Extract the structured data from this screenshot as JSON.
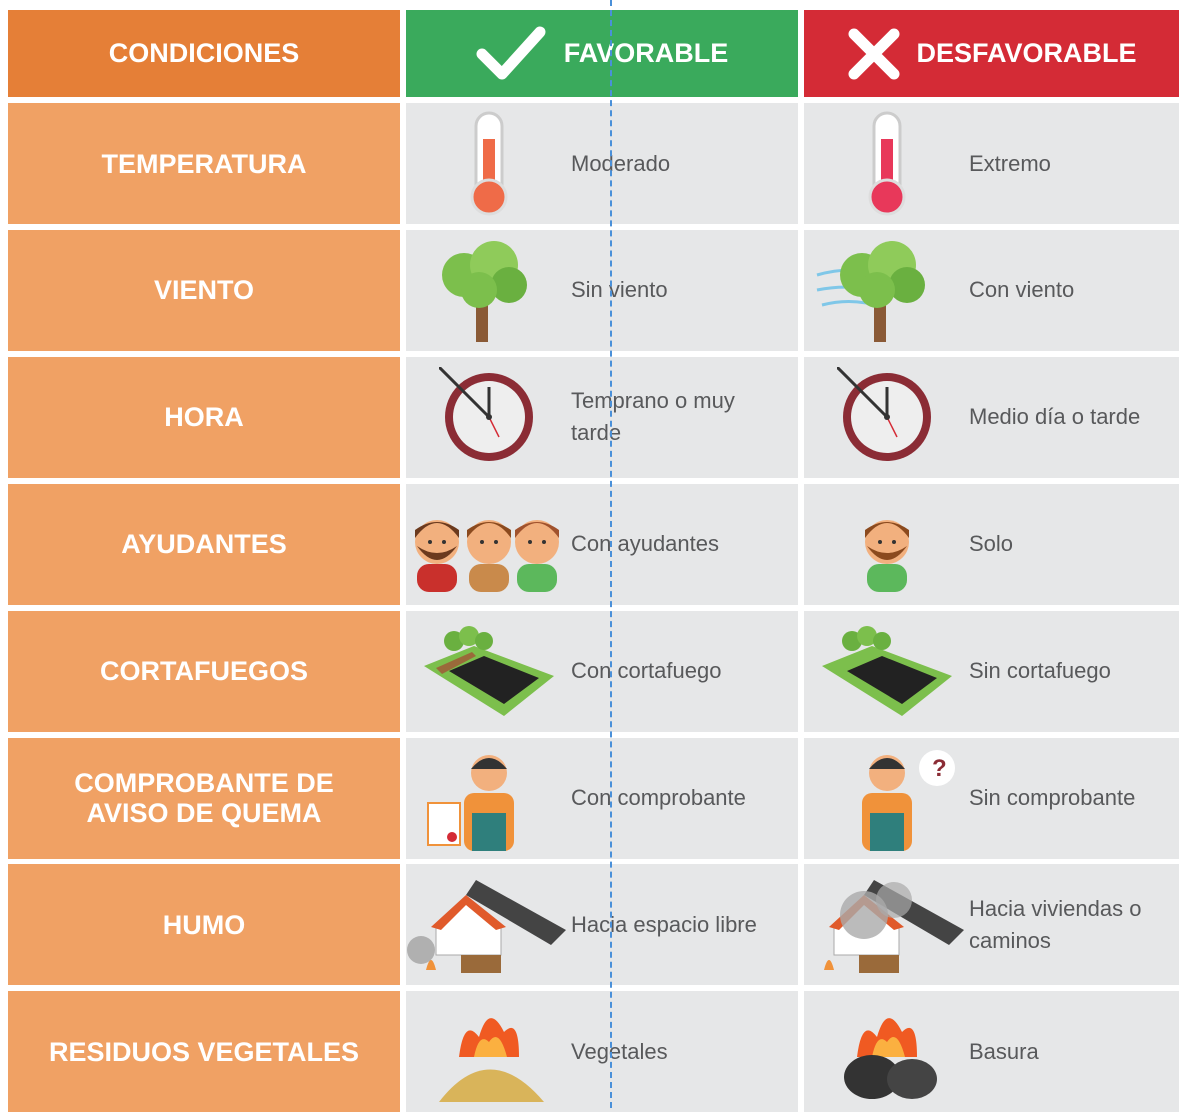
{
  "table": {
    "header": [
      "CONDICIONES",
      "FAVORABLE",
      "DESFAVORABLE"
    ],
    "rows": [
      [
        "TEMPERATURA",
        "Moderado",
        "Extremo"
      ],
      [
        "VIENTO",
        "Sin viento",
        "Con viento"
      ],
      [
        "HORA",
        "Temprano o muy tarde",
        "Medio día o tarde"
      ],
      [
        "AYUDANTES",
        "Con ayudantes",
        "Solo"
      ],
      [
        "CORTAFUEGOS",
        "Con cortafuego",
        "Sin cortafuego"
      ],
      [
        "COMPROBANTE DE AVISO DE QUEMA",
        "Con comprobante",
        "Sin comprobante"
      ],
      [
        "HUMO",
        "Hacia espacio libre",
        "Hacia viviendas o caminos"
      ],
      [
        "RESIDUOS VEGETALES",
        "Vegetales",
        "Basura"
      ]
    ]
  }
}
